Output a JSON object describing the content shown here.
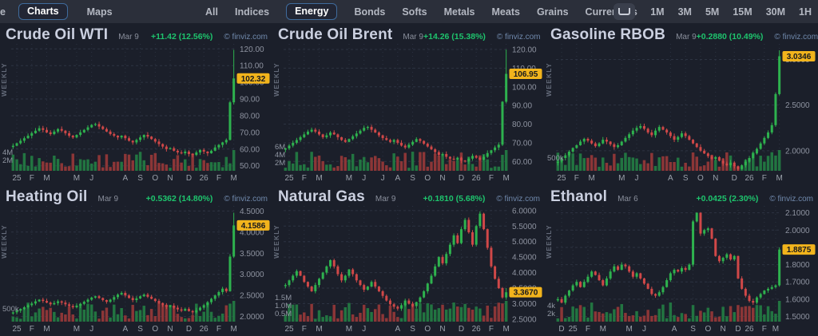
{
  "nav": {
    "left_partial": "e",
    "tabs": [
      {
        "label": "Charts",
        "active": true
      },
      {
        "label": "Maps",
        "active": false
      }
    ],
    "filters": [
      {
        "label": "All",
        "active": false
      },
      {
        "label": "Indices",
        "active": false
      },
      {
        "label": "Energy",
        "active": true
      },
      {
        "label": "Bonds",
        "active": false
      },
      {
        "label": "Softs",
        "active": false
      },
      {
        "label": "Metals",
        "active": false
      },
      {
        "label": "Meats",
        "active": false
      },
      {
        "label": "Grains",
        "active": false
      },
      {
        "label": "Currencies",
        "active": false
      }
    ],
    "layout_icon": "chart-layout-icon",
    "timeframes": [
      "1M",
      "3M",
      "5M",
      "15M",
      "30M",
      "1H"
    ]
  },
  "attribution": "© finviz.com",
  "weekly_label": "WEEKLY",
  "colors": {
    "candle_up": "#2eb24e",
    "candle_down": "#d04848",
    "volume_up": "#237a42",
    "volume_down": "#923838",
    "price_badge_bg": "#f2b41c",
    "change_green": "#1ec46d",
    "grid": "#2c3342"
  },
  "charts": [
    {
      "title": "Crude Oil WTI",
      "date": "Mar 9",
      "change": "+11.42 (12.56%)",
      "last_label": "102.32",
      "last_value": 102.32,
      "chart_data": {
        "type": "candlestick",
        "timeframe": "WEEKLY",
        "ymin": 47,
        "ymax": 123,
        "last_high": 119.5,
        "seed": 1,
        "yticks": [
          [
            120,
            "120.00"
          ],
          [
            110,
            "110.00"
          ],
          [
            100,
            "100.00"
          ],
          [
            90,
            "90.00"
          ],
          [
            80,
            "80.00"
          ],
          [
            70,
            "70.00"
          ],
          [
            60,
            "60.00"
          ],
          [
            50,
            "50.00"
          ]
        ],
        "xlabels": [
          [
            "25",
            1
          ],
          [
            "F",
            5
          ],
          [
            "M",
            9
          ],
          [
            "M",
            17
          ],
          [
            "J",
            21
          ],
          [
            "A",
            30
          ],
          [
            "S",
            34
          ],
          [
            "O",
            38
          ],
          [
            "N",
            42
          ],
          [
            "D",
            47
          ],
          [
            "26",
            51
          ],
          [
            "F",
            55
          ],
          [
            "M",
            59
          ]
        ],
        "vol_labels": [
          [
            "4M",
            23
          ],
          [
            "2M",
            13
          ]
        ],
        "closes": [
          62,
          63.5,
          65,
          66.5,
          68,
          69.5,
          71,
          72.5,
          71.5,
          70,
          69,
          70.5,
          72,
          71,
          69.5,
          68,
          67,
          68.5,
          70,
          71.5,
          73,
          74.5,
          75,
          73.5,
          72,
          70.5,
          69,
          68,
          67,
          68,
          66.5,
          65,
          64,
          65.5,
          67,
          68.5,
          67.5,
          66,
          64.5,
          63,
          61.5,
          60,
          60.5,
          59,
          58,
          57.5,
          58.5,
          57,
          56.5,
          58,
          59.5,
          58.5,
          57.5,
          59,
          61,
          62.5,
          64,
          65.5,
          88,
          102.32
        ]
      }
    },
    {
      "title": "Crude Oil Brent",
      "date": "Mar 9",
      "change": "+14.26 (15.38%)",
      "last_label": "106.95",
      "last_value": 106.95,
      "chart_data": {
        "type": "candlestick",
        "timeframe": "WEEKLY",
        "ymin": 55,
        "ymax": 123,
        "last_high": 120,
        "seed": 2,
        "yticks": [
          [
            120,
            "120.00"
          ],
          [
            110,
            "110.00"
          ],
          [
            100,
            "100.00"
          ],
          [
            90,
            "90.00"
          ],
          [
            80,
            "80.00"
          ],
          [
            70,
            "70.00"
          ],
          [
            60,
            "60.00"
          ]
        ],
        "xlabels": [
          [
            "25",
            1
          ],
          [
            "F",
            5
          ],
          [
            "M",
            9
          ],
          [
            "M",
            17
          ],
          [
            "J",
            21
          ],
          [
            "J",
            26
          ],
          [
            "A",
            30
          ],
          [
            "S",
            34
          ],
          [
            "O",
            38
          ],
          [
            "N",
            42
          ],
          [
            "D",
            47
          ],
          [
            "26",
            51
          ],
          [
            "F",
            55
          ],
          [
            "M",
            59
          ]
        ],
        "vol_labels": [
          [
            "6M",
            30
          ],
          [
            "4M",
            20
          ],
          [
            "2M",
            10
          ]
        ],
        "closes": [
          67,
          68.5,
          70,
          71.5,
          73,
          74.5,
          76,
          77,
          76,
          74.5,
          73,
          74,
          75.5,
          74.5,
          73,
          71.5,
          70.5,
          72,
          73.5,
          75,
          76.5,
          78,
          78.5,
          77,
          75.5,
          74,
          72.5,
          71.5,
          70.5,
          71.5,
          70,
          68.5,
          67.5,
          69,
          70.5,
          72,
          71,
          69.5,
          68,
          66.5,
          65,
          63.5,
          64,
          62.5,
          61.5,
          61,
          62,
          60.5,
          60,
          61.5,
          63,
          62,
          61,
          62.5,
          64.5,
          66,
          67.5,
          69,
          92,
          106.95
        ]
      }
    },
    {
      "title": "Gasoline RBOB",
      "date": "Mar 9",
      "change": "+0.2880 (10.49%)",
      "last_label": "3.0346",
      "last_value": 3.0346,
      "chart_data": {
        "type": "candlestick",
        "timeframe": "WEEKLY",
        "ymin": 1.78,
        "ymax": 3.17,
        "last_high": 3.1,
        "seed": 3,
        "yticks": [
          [
            3,
            "3.0000"
          ],
          [
            2.5,
            "2.5000"
          ],
          [
            2,
            "2.0000"
          ]
        ],
        "xlabels": [
          [
            "25",
            1
          ],
          [
            "F",
            5
          ],
          [
            "M",
            9
          ],
          [
            "M",
            17
          ],
          [
            "J",
            21
          ],
          [
            "A",
            30
          ],
          [
            "S",
            34
          ],
          [
            "O",
            38
          ],
          [
            "N",
            42
          ],
          [
            "D",
            47
          ],
          [
            "26",
            51
          ],
          [
            "F",
            55
          ],
          [
            "M",
            59
          ]
        ],
        "vol_labels": [
          [
            "500k",
            16
          ]
        ],
        "closes": [
          1.88,
          1.92,
          1.95,
          1.99,
          2.03,
          2.06,
          2.1,
          2.13,
          2.11,
          2.08,
          2.05,
          2.08,
          2.12,
          2.1,
          2.07,
          2.04,
          2.06,
          2.1,
          2.14,
          2.18,
          2.22,
          2.25,
          2.27,
          2.24,
          2.2,
          2.17,
          2.22,
          2.26,
          2.23,
          2.2,
          2.16,
          2.12,
          2.15,
          2.19,
          2.16,
          2.12,
          2.08,
          2.04,
          2.0,
          1.97,
          1.94,
          1.91,
          1.93,
          1.89,
          1.86,
          1.84,
          1.87,
          1.83,
          1.8,
          1.84,
          1.88,
          1.92,
          1.97,
          2.02,
          2.08,
          2.14,
          2.2,
          2.28,
          2.62,
          3.0346
        ]
      }
    },
    {
      "title": "Heating Oil",
      "date": "Mar 9",
      "change": "+0.5362 (14.80%)",
      "last_label": "4.1586",
      "last_value": 4.1586,
      "chart_data": {
        "type": "candlestick",
        "timeframe": "WEEKLY",
        "ymin": 1.88,
        "ymax": 4.62,
        "last_high": 4.46,
        "seed": 4,
        "yticks": [
          [
            4.5,
            "4.5000"
          ],
          [
            4,
            "4.0000"
          ],
          [
            3.5,
            "3.5000"
          ],
          [
            3,
            "3.0000"
          ],
          [
            2.5,
            "2.5000"
          ],
          [
            2,
            "2.0000"
          ]
        ],
        "xlabels": [
          [
            "25",
            1
          ],
          [
            "F",
            5
          ],
          [
            "M",
            9
          ],
          [
            "M",
            17
          ],
          [
            "J",
            21
          ],
          [
            "A",
            30
          ],
          [
            "S",
            34
          ],
          [
            "O",
            38
          ],
          [
            "N",
            42
          ],
          [
            "D",
            47
          ],
          [
            "26",
            51
          ],
          [
            "F",
            55
          ],
          [
            "M",
            59
          ]
        ],
        "vol_labels": [
          [
            "500k",
            16
          ]
        ],
        "closes": [
          2.1,
          2.14,
          2.18,
          2.22,
          2.27,
          2.31,
          2.36,
          2.4,
          2.37,
          2.33,
          2.29,
          2.32,
          2.36,
          2.33,
          2.29,
          2.25,
          2.22,
          2.26,
          2.3,
          2.35,
          2.4,
          2.45,
          2.48,
          2.44,
          2.39,
          2.35,
          2.4,
          2.46,
          2.52,
          2.56,
          2.5,
          2.44,
          2.39,
          2.43,
          2.48,
          2.52,
          2.47,
          2.42,
          2.37,
          2.32,
          2.27,
          2.23,
          2.26,
          2.21,
          2.17,
          2.14,
          2.18,
          2.13,
          2.1,
          2.15,
          2.21,
          2.27,
          2.34,
          2.42,
          2.5,
          2.58,
          2.66,
          2.6,
          3.42,
          4.1586
        ]
      }
    },
    {
      "title": "Natural Gas",
      "date": "Mar 9",
      "change": "+0.1810 (5.68%)",
      "last_label": "3.3670",
      "last_value": 3.367,
      "chart_data": {
        "type": "candlestick",
        "timeframe": "WEEKLY",
        "ymin": 2.42,
        "ymax": 6.15,
        "last_high": 3.5,
        "seed": 5,
        "yticks": [
          [
            6,
            "6.0000"
          ],
          [
            5.5,
            "5.5000"
          ],
          [
            5,
            "5.0000"
          ],
          [
            4.5,
            "4.5000"
          ],
          [
            4,
            "4.0000"
          ],
          [
            3.5,
            "3.5000"
          ],
          [
            3,
            "3.0000"
          ],
          [
            2.5,
            "2.5000"
          ]
        ],
        "xlabels": [
          [
            "25",
            1
          ],
          [
            "F",
            5
          ],
          [
            "M",
            9
          ],
          [
            "M",
            17
          ],
          [
            "J",
            21
          ],
          [
            "A",
            30
          ],
          [
            "S",
            34
          ],
          [
            "O",
            38
          ],
          [
            "N",
            42
          ],
          [
            "D",
            47
          ],
          [
            "26",
            51
          ],
          [
            "F",
            55
          ],
          [
            "M",
            59
          ]
        ],
        "vol_labels": [
          [
            "1.5M",
            30
          ],
          [
            "1.0M",
            20
          ],
          [
            "0.5M",
            10
          ]
        ],
        "closes": [
          3.6,
          3.75,
          3.9,
          4.05,
          3.9,
          3.7,
          3.55,
          3.4,
          3.6,
          3.8,
          4.0,
          4.2,
          4.4,
          4.2,
          3.95,
          3.75,
          3.9,
          4.1,
          3.95,
          3.75,
          3.6,
          3.45,
          3.55,
          3.7,
          3.55,
          3.4,
          3.25,
          3.1,
          2.98,
          2.9,
          2.84,
          2.95,
          3.1,
          3.0,
          2.92,
          3.05,
          3.2,
          3.4,
          3.65,
          3.9,
          4.2,
          4.5,
          4.3,
          4.6,
          4.9,
          5.2,
          4.95,
          5.4,
          5.7,
          5.3,
          4.9,
          5.5,
          5.9,
          5.4,
          4.8,
          4.2,
          3.8,
          3.5,
          3.2,
          3.367
        ]
      }
    },
    {
      "title": "Ethanol",
      "date": "Mar 6",
      "change": "+0.0425 (2.30%)",
      "last_label": "1.8875",
      "last_value": 1.8875,
      "chart_data": {
        "type": "candlestick",
        "timeframe": "WEEKLY",
        "ymin": 1.47,
        "ymax": 2.14,
        "last_high": 1.9,
        "seed": 6,
        "yticks": [
          [
            2.1,
            "2.1000"
          ],
          [
            2,
            "2.0000"
          ],
          [
            1.9,
            "1.9000"
          ],
          [
            1.8,
            "1.8000"
          ],
          [
            1.7,
            "1.7000"
          ],
          [
            1.6,
            "1.6000"
          ],
          [
            1.5,
            "1.5000"
          ]
        ],
        "xlabels": [
          [
            "D",
            1
          ],
          [
            "25",
            4
          ],
          [
            "F",
            8
          ],
          [
            "M",
            12
          ],
          [
            "M",
            19
          ],
          [
            "J",
            23
          ],
          [
            "A",
            31
          ],
          [
            "S",
            36
          ],
          [
            "O",
            40
          ],
          [
            "N",
            44
          ],
          [
            "D",
            48
          ],
          [
            "26",
            51
          ],
          [
            "F",
            55
          ],
          [
            "M",
            58
          ]
        ],
        "vol_labels": [
          [
            "4k",
            20
          ],
          [
            "2k",
            10
          ]
        ],
        "closes": [
          1.6,
          1.58,
          1.62,
          1.65,
          1.68,
          1.7,
          1.67,
          1.7,
          1.73,
          1.76,
          1.74,
          1.71,
          1.68,
          1.72,
          1.76,
          1.79,
          1.77,
          1.8,
          1.79,
          1.76,
          1.73,
          1.75,
          1.72,
          1.69,
          1.66,
          1.63,
          1.62,
          1.64,
          1.67,
          1.71,
          1.75,
          1.77,
          1.76,
          1.78,
          1.77,
          1.8,
          2.05,
          2.1,
          1.98,
          2.0,
          2.01,
          1.95,
          1.85,
          1.82,
          1.84,
          1.86,
          1.83,
          1.85,
          1.72,
          1.66,
          1.62,
          1.59,
          1.58,
          1.61,
          1.63,
          1.65,
          1.66,
          1.67,
          1.68,
          1.8875
        ]
      }
    }
  ]
}
